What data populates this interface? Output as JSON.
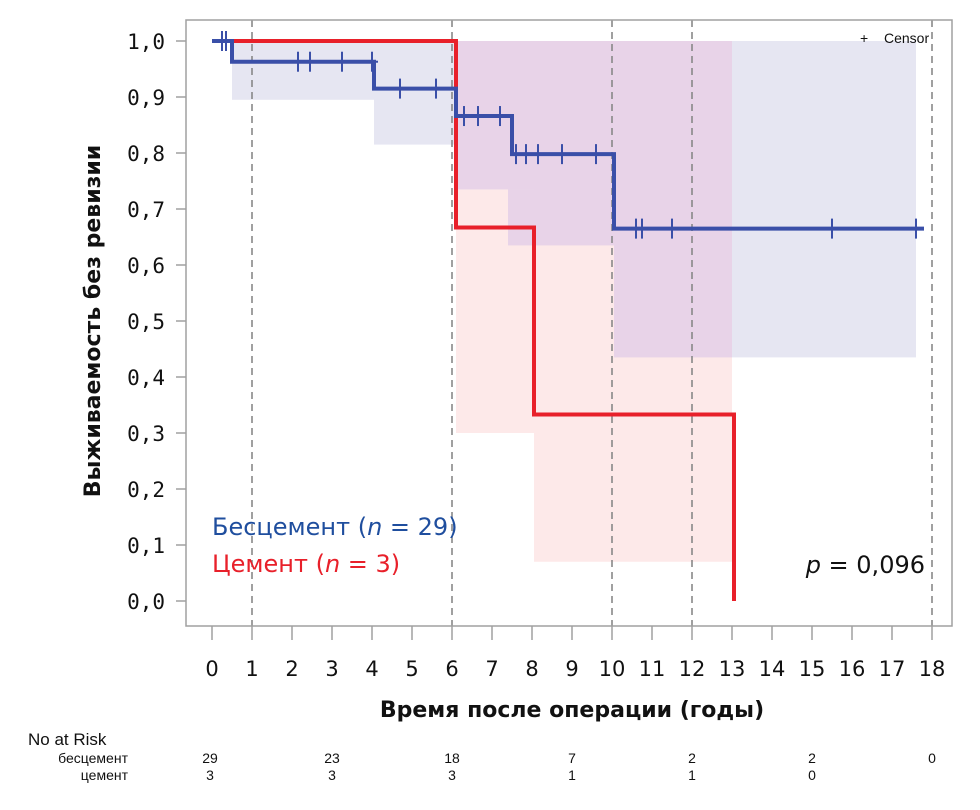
{
  "chart_data": {
    "type": "line",
    "subtype": "kaplan-meier",
    "title": "",
    "xlabel": "Время после операции (годы)",
    "ylabel": "Выживаемость без ревизии",
    "xlim": [
      0,
      18
    ],
    "ylim": [
      0,
      1
    ],
    "x_ticks": [
      "0",
      "1",
      "2",
      "3",
      "4",
      "5",
      "6",
      "7",
      "8",
      "9",
      "10",
      "11",
      "12",
      "13",
      "14",
      "15",
      "16",
      "17",
      "18"
    ],
    "y_ticks": [
      "0,0",
      "0,1",
      "0,2",
      "0,3",
      "0,4",
      "0,5",
      "0,6",
      "0,7",
      "0,8",
      "0,9",
      "1,0"
    ],
    "grid": false,
    "reference_lines_x": [
      1,
      6,
      10,
      12,
      18
    ],
    "censor_legend": {
      "symbol": "+",
      "label": "Censor",
      "placement": "top-right"
    },
    "series": [
      {
        "name": "Бесцемент",
        "legend": "Бесцемент (n = 29)",
        "legend_prefix": "Бесцемент (",
        "legend_n": "n",
        "legend_suffix": " = 29)",
        "color": "#3a4fa8",
        "band_color": "#e6e6f2",
        "steps": [
          [
            0,
            1.0
          ],
          [
            0.5,
            0.963
          ],
          [
            4.05,
            0.915
          ],
          [
            6.1,
            0.866
          ],
          [
            7.5,
            0.798
          ],
          [
            10.05,
            0.665
          ],
          [
            17.8,
            0.665
          ]
        ],
        "ci": [
          {
            "x0": 0.5,
            "x1": 4.05,
            "lo": 0.895,
            "hi": 1.0
          },
          {
            "x0": 4.05,
            "x1": 6.1,
            "lo": 0.815,
            "hi": 1.0
          },
          {
            "x0": 6.1,
            "x1": 7.4,
            "lo": 0.735,
            "hi": 1.0
          },
          {
            "x0": 7.4,
            "x1": 10.05,
            "lo": 0.635,
            "hi": 1.0
          },
          {
            "x0": 10.05,
            "x1": 17.6,
            "lo": 0.435,
            "hi": 1.0
          }
        ],
        "censored": [
          0.25,
          0.35,
          2.15,
          2.45,
          3.25,
          4.0,
          4.7,
          5.6,
          6.3,
          6.65,
          7.2,
          7.6,
          7.85,
          8.15,
          8.75,
          9.6,
          10.6,
          10.75,
          11.5,
          15.5,
          17.6
        ]
      },
      {
        "name": "Цемент",
        "legend": "Цемент (n = 3)",
        "legend_prefix": "Цемент (",
        "legend_n": "n",
        "legend_suffix": " = 3)",
        "color": "#e8202a",
        "band_color": "#fce4e4",
        "steps": [
          [
            0,
            1.0
          ],
          [
            6.1,
            0.667
          ],
          [
            8.05,
            0.333
          ],
          [
            13.05,
            0.0
          ]
        ],
        "ci": [
          {
            "x0": 6.1,
            "x1": 7.4,
            "lo": 0.3,
            "hi": 0.735
          },
          {
            "x0": 7.4,
            "x1": 8.05,
            "lo": 0.3,
            "hi": 0.735
          },
          {
            "x0": 8.05,
            "x1": 13.0,
            "lo": 0.07,
            "hi": 1.0
          }
        ],
        "censored": []
      }
    ],
    "overlap_color": "#e8d3e8",
    "annotation": {
      "text_prefix": "p",
      "text_suffix": " = 0,096"
    },
    "risk_table": {
      "title": "No at Risk",
      "times": [
        0,
        3,
        6,
        9,
        12,
        15,
        18
      ],
      "rows": [
        {
          "label": "бесцемент",
          "values": [
            "29",
            "23",
            "18",
            "7",
            "2",
            "2",
            "0"
          ]
        },
        {
          "label": "цемент",
          "values": [
            "3",
            "3",
            "3",
            "1",
            "1",
            "0",
            ""
          ]
        }
      ]
    }
  }
}
